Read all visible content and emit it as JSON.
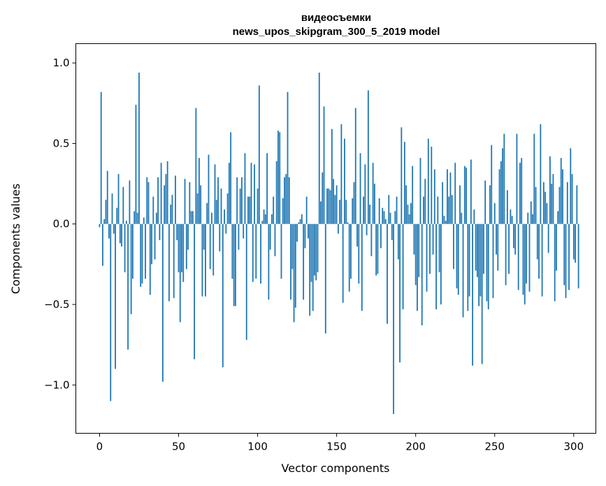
{
  "chart_data": {
    "type": "bar",
    "title_line1": "видеосъемки",
    "title_line2": "news_upos_skipgram_300_5_2019 model",
    "xlabel": "Vector components",
    "ylabel": "Components values",
    "xlim": [
      -15,
      314
    ],
    "ylim": [
      -1.3,
      1.12
    ],
    "xticks": [
      0,
      50,
      100,
      150,
      200,
      250,
      300
    ],
    "xtick_labels": [
      "0",
      "50",
      "100",
      "150",
      "200",
      "250",
      "300"
    ],
    "yticks": [
      1.0,
      0.5,
      0.0,
      -0.5,
      -1.0
    ],
    "ytick_labels": [
      "1.0",
      "0.5",
      "0.0",
      "−0.5",
      "−1.0"
    ],
    "bar_color": "#1f77b4",
    "values": [
      -0.02,
      0.82,
      -0.26,
      0.03,
      0.15,
      0.33,
      -0.09,
      -1.1,
      0.19,
      -0.06,
      -0.9,
      0.1,
      0.31,
      -0.12,
      -0.14,
      0.23,
      -0.3,
      0.02,
      -0.78,
      0.27,
      -0.56,
      -0.34,
      0.08,
      0.74,
      0.07,
      0.94,
      -0.39,
      -0.37,
      0.04,
      -0.34,
      0.29,
      0.26,
      -0.44,
      -0.25,
      0.17,
      -0.22,
      0.07,
      0.29,
      -0.1,
      0.38,
      -0.98,
      0.24,
      0.31,
      0.39,
      -0.48,
      0.12,
      0.18,
      -0.46,
      0.3,
      -0.1,
      -0.3,
      -0.61,
      -0.3,
      -0.36,
      0.28,
      -0.28,
      -0.16,
      0.26,
      0.08,
      0.08,
      -0.84,
      0.72,
      0.19,
      0.41,
      0.24,
      -0.45,
      -0.16,
      -0.45,
      0.13,
      0.43,
      -0.28,
      0.07,
      -0.32,
      0.37,
      0.15,
      0.29,
      -0.17,
      0.22,
      -0.89,
      0.09,
      -0.06,
      0.19,
      0.38,
      0.57,
      -0.34,
      -0.51,
      -0.51,
      0.29,
      -0.16,
      0.22,
      0.29,
      -0.09,
      0.44,
      -0.72,
      0.17,
      0.17,
      0.38,
      -0.36,
      0.37,
      -0.34,
      0.22,
      0.86,
      -0.37,
      0.02,
      0.09,
      0.06,
      0.44,
      -0.47,
      -0.16,
      0.06,
      0.17,
      -0.2,
      0.39,
      0.58,
      0.57,
      -0.34,
      0.16,
      0.29,
      0.31,
      0.82,
      0.29,
      -0.47,
      -0.28,
      -0.61,
      -0.52,
      -0.11,
      0.01,
      0.03,
      0.06,
      -0.47,
      -0.15,
      0.17,
      -0.09,
      -0.57,
      -0.36,
      -0.54,
      -0.32,
      -0.35,
      -0.3,
      0.94,
      0.14,
      0.32,
      0.73,
      -0.68,
      0.22,
      0.22,
      0.21,
      0.59,
      0.28,
      0.18,
      0.24,
      -0.06,
      0.15,
      0.62,
      -0.49,
      0.53,
      0.15,
      0.01,
      -0.42,
      -0.34,
      0.16,
      0.26,
      0.72,
      -0.14,
      -0.37,
      0.44,
      -0.54,
      0.17,
      0.37,
      -0.07,
      0.83,
      0.12,
      -0.2,
      0.38,
      0.25,
      -0.32,
      -0.31,
      0.16,
      -0.15,
      0.1,
      0.08,
      0.03,
      -0.62,
      0.18,
      0.07,
      -0.1,
      -1.18,
      0.08,
      0.17,
      -0.22,
      -0.86,
      0.6,
      -0.53,
      0.51,
      0.24,
      0.12,
      0.06,
      0.13,
      0.36,
      -0.19,
      -0.38,
      -0.54,
      -0.33,
      0.41,
      -0.63,
      0.17,
      0.28,
      -0.42,
      0.53,
      -0.31,
      0.48,
      -0.19,
      0.34,
      -0.53,
      0.17,
      -0.3,
      -0.5,
      0.26,
      0.05,
      0.02,
      0.34,
      0.17,
      0.32,
      0.18,
      -0.28,
      0.38,
      -0.4,
      -0.44,
      0.24,
      0.07,
      -0.58,
      0.36,
      0.35,
      -0.54,
      -0.45,
      0.4,
      -0.88,
      0.09,
      -0.29,
      -0.33,
      -0.51,
      -0.45,
      -0.87,
      -0.31,
      0.27,
      -0.48,
      -0.53,
      0.24,
      0.49,
      -0.46,
      0.13,
      -0.19,
      -0.29,
      0.34,
      0.39,
      0.47,
      0.56,
      -0.38,
      0.21,
      -0.31,
      0.09,
      0.05,
      -0.15,
      -0.19,
      0.56,
      -0.41,
      0.38,
      0.41,
      -0.44,
      -0.5,
      -0.37,
      0.07,
      -0.42,
      0.14,
      0.06,
      0.56,
      0.23,
      -0.22,
      -0.34,
      0.62,
      -0.45,
      0.26,
      0.2,
      0.13,
      -0.18,
      0.42,
      0.25,
      0.31,
      -0.48,
      -0.29,
      0.08,
      0.23,
      0.41,
      0.34,
      -0.38,
      -0.46,
      0.26,
      -0.41,
      0.47,
      0.31,
      -0.22,
      -0.24,
      0.24,
      -0.4
    ]
  }
}
